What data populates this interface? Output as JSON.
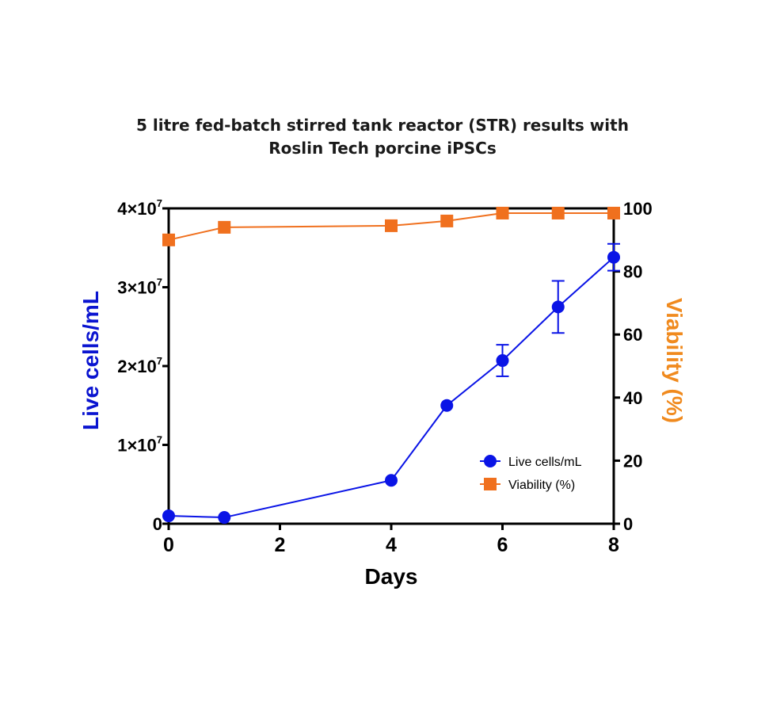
{
  "chart_data": {
    "type": "line",
    "title_lines": [
      "5 litre fed-batch stirred tank reactor (STR) results with",
      "Roslin Tech porcine iPSCs"
    ],
    "xlabel": "Days",
    "ylabel_left": "Live cells/mL",
    "ylabel_right": "Viability (%)",
    "xlim": [
      0,
      8
    ],
    "x_ticks": [
      "0",
      "2",
      "4",
      "6",
      "8"
    ],
    "ylim_left": [
      0,
      40000000
    ],
    "y_ticks_left": [
      {
        "mant": "0",
        "exp": ""
      },
      {
        "mant": "1×10",
        "exp": "7"
      },
      {
        "mant": "2×10",
        "exp": "7"
      },
      {
        "mant": "3×10",
        "exp": "7"
      },
      {
        "mant": "4×10",
        "exp": "7"
      }
    ],
    "ylim_right": [
      0,
      100
    ],
    "y_ticks_right": [
      "0",
      "20",
      "40",
      "60",
      "80",
      "100"
    ],
    "legend_position": "lower-right",
    "series": [
      {
        "name": "Live cells/mL",
        "axis": "left",
        "color": "#0a14e6",
        "marker": "circle",
        "x": [
          0,
          1,
          4,
          5,
          6,
          7,
          8
        ],
        "y": [
          1000000,
          800000,
          5500000,
          15000000,
          20700000,
          27500000,
          33800000
        ],
        "error": [
          0,
          0,
          0,
          0,
          2000000,
          3300000,
          1700000
        ]
      },
      {
        "name": "Viability (%)",
        "axis": "right",
        "color": "#f0701e",
        "marker": "square",
        "x": [
          0,
          1,
          4,
          5,
          6,
          7,
          8
        ],
        "y": [
          90,
          94,
          94.5,
          96,
          98.5,
          98.5,
          98.5
        ],
        "error": [
          0,
          0,
          0,
          0,
          0,
          0,
          0
        ]
      }
    ]
  }
}
